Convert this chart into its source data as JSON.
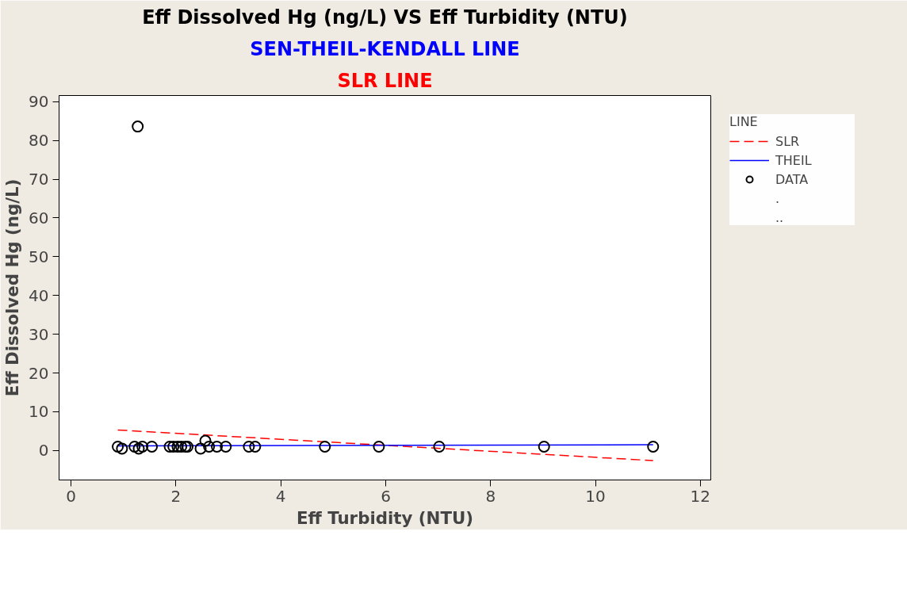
{
  "chart_data": {
    "type": "line",
    "title": "Eff Dissolved Hg (ng/L) VS Eff Turbidity (NTU)",
    "subtitle": "SEN-THEIL-KENDALL LINE",
    "xlabel": "Eff Turbidity (NTU)",
    "ylabel": "Eff Dissolved Hg (ng/L)",
    "legend_title": "LINE",
    "annotations": [
      "SLR LINE",
      ".",
      ".."
    ],
    "series": [
      {
        "name": "SLR",
        "color": "#ff0000",
        "line_style": "dashed",
        "x": [
          0.89,
          11.1
        ],
        "values": [
          5.3,
          -2.6
        ]
      },
      {
        "name": "THEIL",
        "color": "#0000ff",
        "line_style": "solid",
        "x": [
          0.89,
          11.1
        ],
        "values": [
          1.2,
          1.5
        ]
      },
      {
        "name": "DATA",
        "type": "scatter",
        "color": "#000000",
        "marker": "circle",
        "x": [
          0.89,
          0.97,
          1.21,
          1.27,
          1.29,
          1.36,
          1.54,
          1.88,
          1.95,
          2.03,
          2.1,
          2.18,
          2.22,
          2.47,
          2.56,
          2.63,
          2.78,
          2.95,
          3.39,
          3.51,
          4.84,
          5.87,
          7.02,
          9.02,
          11.1
        ],
        "values": [
          1,
          0.5,
          1,
          83.6,
          0.5,
          1,
          1,
          1,
          1,
          1,
          1,
          1,
          1,
          0.5,
          2.5,
          1,
          1,
          1,
          1,
          1,
          1,
          1,
          1,
          1,
          1
        ]
      }
    ],
    "xlim": [
      -0.23,
      12.2
    ],
    "ylim": [
      -7.6,
      91.6
    ],
    "xticks": [
      0,
      2,
      4,
      6,
      8,
      10,
      12
    ],
    "yticks": [
      0,
      10,
      20,
      30,
      40,
      50,
      60,
      70,
      80,
      90
    ],
    "grid": false,
    "legend": "right"
  }
}
